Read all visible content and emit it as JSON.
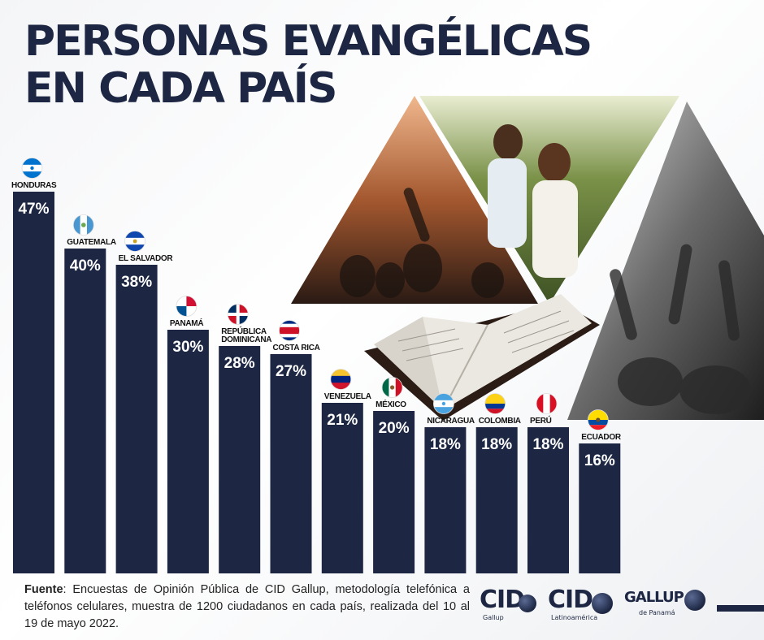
{
  "title": {
    "line1": "PERSONAS EVANGÉLICAS",
    "line2": "EN CADA PAÍS"
  },
  "colors": {
    "bar": "#1d2743",
    "title": "#1d2743",
    "label": "#111111",
    "value": "#ffffff"
  },
  "chart_data": {
    "type": "bar",
    "title": "PERSONAS EVANGÉLICAS EN CADA PAÍS",
    "xlabel": "",
    "ylabel": "",
    "ylim": [
      0,
      50
    ],
    "categories": [
      "HONDURAS",
      "GUATEMALA",
      "EL SALVADOR",
      "PANAMÁ",
      "REPÚBLICA DOMINICANA",
      "COSTA RICA",
      "VENEZUELA",
      "MÉXICO",
      "NICARAGUA",
      "COLOMBIA",
      "PERÚ",
      "ECUADOR"
    ],
    "values": [
      47,
      40,
      38,
      30,
      28,
      27,
      21,
      20,
      18,
      18,
      18,
      16
    ],
    "value_labels": [
      "47%",
      "40%",
      "38%",
      "30%",
      "28%",
      "27%",
      "21%",
      "20%",
      "18%",
      "18%",
      "18%",
      "16%"
    ],
    "label_lines": [
      [
        "HONDURAS"
      ],
      [
        "GUATEMALA"
      ],
      [
        "EL SALVADOR"
      ],
      [
        "PANAMÁ"
      ],
      [
        "REPÚBLICA",
        "DOMINICANA"
      ],
      [
        "COSTA RICA"
      ],
      [
        "VENEZUELA"
      ],
      [
        "MÉXICO"
      ],
      [
        "NICARAGUA"
      ],
      [
        "COLOMBIA"
      ],
      [
        "PERÚ"
      ],
      [
        "ECUADOR"
      ]
    ],
    "flags": [
      "honduras-flag-icon",
      "guatemala-flag-icon",
      "el-salvador-flag-icon",
      "panama-flag-icon",
      "dominican-republic-flag-icon",
      "costa-rica-flag-icon",
      "venezuela-flag-icon",
      "mexico-flag-icon",
      "nicaragua-flag-icon",
      "colombia-flag-icon",
      "peru-flag-icon",
      "ecuador-flag-icon"
    ],
    "grid": false,
    "legend": "none"
  },
  "footer": {
    "source_label": "Fuente",
    "source_text": ": Encuestas de Opinión Pública de CID Gallup, metodología telefónica a teléfonos celulares, muestra de 1200 ciudadanos en cada país, realizada del 10 al 19 de mayo 2022."
  },
  "logos": {
    "cid_gallup_main": "CID",
    "cid_gallup_sub": "Gallup",
    "cid_latam_main": "CID",
    "cid_latam_sub": "Latinoamérica",
    "gallup_panama_main": "GALLUP",
    "gallup_panama_sub": "de Panamá"
  }
}
